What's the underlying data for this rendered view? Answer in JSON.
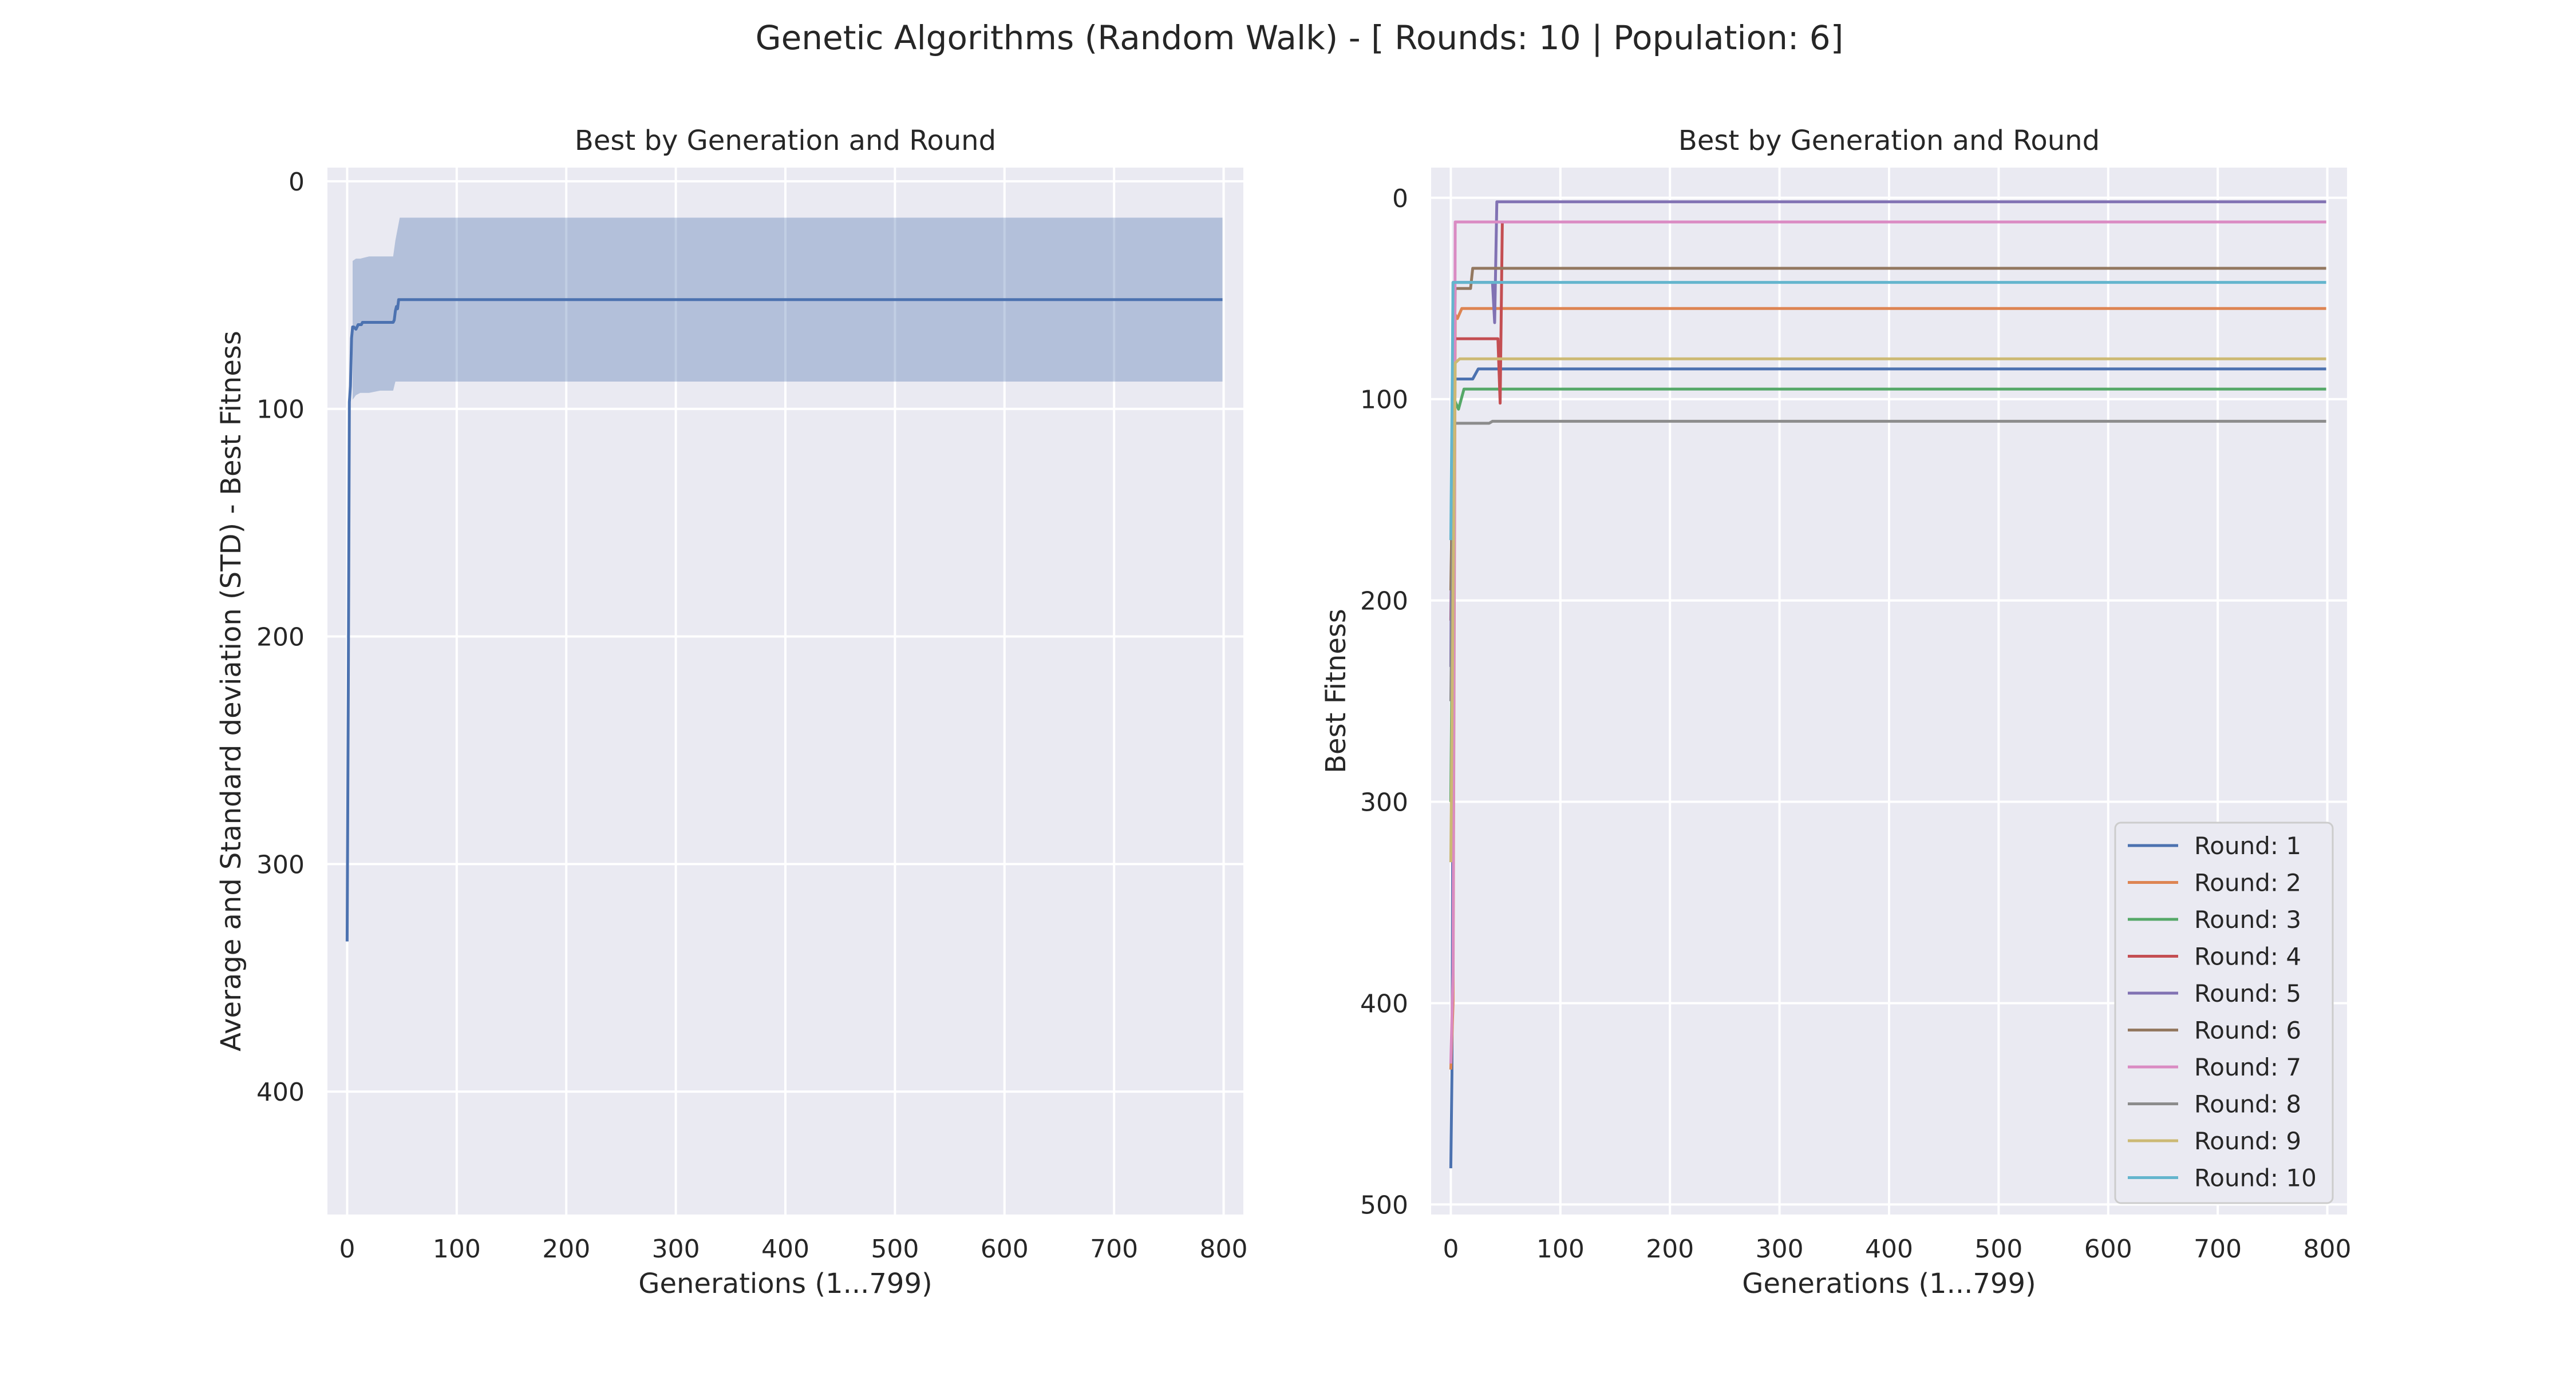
{
  "figure": {
    "suptitle": "Genetic Algorithms (Random Walk) - [ Rounds: 10 | Population: 6]"
  },
  "chart_data": [
    {
      "type": "line",
      "title": "Best by Generation and Round",
      "xlabel": "Generations (1...799)",
      "ylabel": "Average and Standard deviation (STD) - Best Fitness",
      "xlim": [
        -18,
        818
      ],
      "ylim": [
        454,
        -6
      ],
      "y_inverted": true,
      "grid": true,
      "x_ticks": [
        0,
        100,
        200,
        300,
        400,
        500,
        600,
        700,
        800
      ],
      "y_ticks": [
        0,
        100,
        200,
        300,
        400
      ],
      "series": [
        {
          "name": "mean",
          "color": "#4c72b0",
          "points": [
            [
              0,
              334
            ],
            [
              1,
              225
            ],
            [
              2,
              97
            ],
            [
              3,
              90
            ],
            [
              4,
              69
            ],
            [
              5,
              64
            ],
            [
              6,
              64
            ],
            [
              8,
              65
            ],
            [
              10,
              63
            ],
            [
              13,
              63
            ],
            [
              14,
              62
            ],
            [
              20,
              62
            ],
            [
              25,
              62
            ],
            [
              30,
              62
            ],
            [
              40,
              62
            ],
            [
              42,
              62
            ],
            [
              43,
              61
            ],
            [
              44,
              57
            ],
            [
              45,
              55
            ],
            [
              46,
              56
            ],
            [
              47,
              52
            ],
            [
              48,
              52
            ],
            [
              60,
              52
            ],
            [
              100,
              52
            ],
            [
              200,
              52
            ],
            [
              300,
              52
            ],
            [
              400,
              52
            ],
            [
              500,
              52
            ],
            [
              600,
              52
            ],
            [
              700,
              52
            ],
            [
              799,
              52
            ]
          ]
        }
      ],
      "std_band": {
        "color": "#4c72b0",
        "opacity": 0.35,
        "points": [
          [
            5,
            35,
            96
          ],
          [
            8,
            34,
            94
          ],
          [
            12,
            34,
            93
          ],
          [
            20,
            33,
            93
          ],
          [
            30,
            33,
            92
          ],
          [
            42,
            33,
            92
          ],
          [
            44,
            26,
            88
          ],
          [
            46,
            21,
            88
          ],
          [
            48,
            16,
            88
          ],
          [
            100,
            16,
            88
          ],
          [
            200,
            16,
            88
          ],
          [
            300,
            16,
            88
          ],
          [
            400,
            16,
            88
          ],
          [
            500,
            16,
            88
          ],
          [
            600,
            16,
            88
          ],
          [
            700,
            16,
            88
          ],
          [
            799,
            16,
            88
          ]
        ]
      }
    },
    {
      "type": "line",
      "title": "Best by Generation and Round",
      "xlabel": "Generations (1...799)",
      "ylabel": "Best Fitness",
      "xlim": [
        -18,
        818
      ],
      "ylim": [
        505,
        -15
      ],
      "y_inverted": true,
      "grid": true,
      "legend": "lower-right",
      "x_ticks": [
        0,
        100,
        200,
        300,
        400,
        500,
        600,
        700,
        800
      ],
      "y_ticks": [
        0,
        100,
        200,
        300,
        400,
        500
      ],
      "series": [
        {
          "name": "Round: 1",
          "color": "#4c72b0",
          "points": [
            [
              0,
              482
            ],
            [
              1,
              435
            ],
            [
              3,
              90
            ],
            [
              20,
              90
            ],
            [
              25,
              85
            ],
            [
              799,
              85
            ]
          ]
        },
        {
          "name": "Round: 2",
          "color": "#dd8452",
          "points": [
            [
              0,
              433
            ],
            [
              2,
              400
            ],
            [
              4,
              58
            ],
            [
              6,
              60
            ],
            [
              10,
              55
            ],
            [
              799,
              55
            ]
          ]
        },
        {
          "name": "Round: 3",
          "color": "#55a868",
          "points": [
            [
              0,
              300
            ],
            [
              3,
              100
            ],
            [
              7,
              105
            ],
            [
              12,
              95
            ],
            [
              799,
              95
            ]
          ]
        },
        {
          "name": "Round: 4",
          "color": "#c44e52",
          "points": [
            [
              0,
              210
            ],
            [
              3,
              70
            ],
            [
              43,
              70
            ],
            [
              45,
              102
            ],
            [
              47,
              12
            ],
            [
              799,
              12
            ]
          ]
        },
        {
          "name": "Round: 5",
          "color": "#8172b3",
          "points": [
            [
              0,
              233
            ],
            [
              2,
              42
            ],
            [
              38,
              42
            ],
            [
              40,
              62
            ],
            [
              42,
              2
            ],
            [
              799,
              2
            ]
          ]
        },
        {
          "name": "Round: 6",
          "color": "#937860",
          "points": [
            [
              0,
              195
            ],
            [
              4,
              45
            ],
            [
              18,
              45
            ],
            [
              20,
              35
            ],
            [
              799,
              35
            ]
          ]
        },
        {
          "name": "Round: 7",
          "color": "#da8bc3",
          "points": [
            [
              0,
              430
            ],
            [
              2,
              385
            ],
            [
              4,
              12
            ],
            [
              799,
              12
            ]
          ]
        },
        {
          "name": "Round: 8",
          "color": "#8c8c8c",
          "points": [
            [
              0,
              250
            ],
            [
              3,
              112
            ],
            [
              35,
              112
            ],
            [
              38,
              111
            ],
            [
              799,
              111
            ]
          ]
        },
        {
          "name": "Round: 9",
          "color": "#ccb974",
          "points": [
            [
              0,
              330
            ],
            [
              2,
              200
            ],
            [
              4,
              82
            ],
            [
              8,
              80
            ],
            [
              799,
              80
            ]
          ]
        },
        {
          "name": "Round: 10",
          "color": "#64b5cd",
          "points": [
            [
              0,
              170
            ],
            [
              2,
              42
            ],
            [
              799,
              42
            ]
          ]
        }
      ]
    }
  ]
}
